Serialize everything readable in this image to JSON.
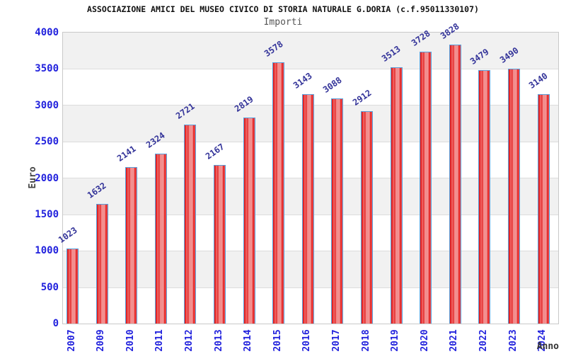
{
  "chart_data": {
    "type": "bar",
    "title": "ASSOCIAZIONE AMICI DEL MUSEO CIVICO DI STORIA NATURALE G.DORIA (c.f.95011330107)",
    "subtitle": "Importi",
    "ylabel": "Euro",
    "xlabel": "Anno",
    "categories": [
      "2007",
      "2009",
      "2010",
      "2011",
      "2012",
      "2013",
      "2014",
      "2015",
      "2016",
      "2017",
      "2018",
      "2019",
      "2020",
      "2021",
      "2022",
      "2023",
      "2024"
    ],
    "values": [
      1023,
      1632,
      2141,
      2324,
      2721,
      2167,
      2819,
      3578,
      3143,
      3088,
      2912,
      3513,
      3728,
      3828,
      3479,
      3490,
      3140
    ],
    "ylim": [
      0,
      4000
    ],
    "yticks": [
      0,
      500,
      1000,
      1500,
      2000,
      2500,
      3000,
      3500,
      4000
    ],
    "grid": "horizontal-bands",
    "legend": "none",
    "colors": {
      "bar_fill": "#e31f1f",
      "bar_highlight": "#f7a0a0",
      "bar_border": "#58a0dc",
      "tick_label": "#2222dd",
      "value_label": "#333399",
      "band_gray": "#f1f1f1",
      "band_white": "#ffffff",
      "plot_border": "#c9c9c9",
      "title_color": "#111111",
      "subtitle_color": "#555555"
    }
  }
}
